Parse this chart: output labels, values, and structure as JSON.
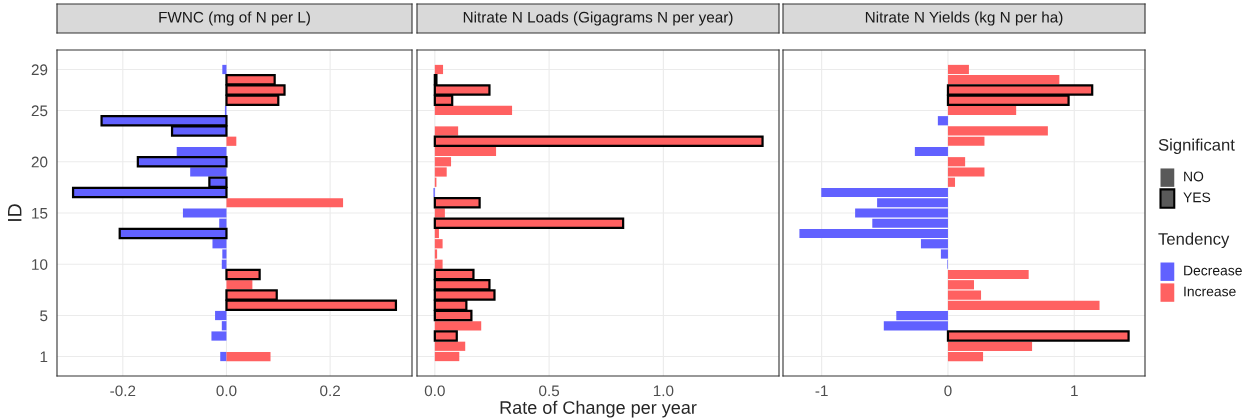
{
  "chart_data": [
    {
      "type": "bar",
      "orientation": "horizontal",
      "title": "FWNC (mg of N per L)",
      "ylabel": "ID",
      "x": [
        1,
        2,
        3,
        4,
        5,
        6,
        7,
        8,
        9,
        10,
        11,
        12,
        13,
        14,
        15,
        16,
        17,
        18,
        19,
        20,
        21,
        22,
        23,
        24,
        25,
        26,
        27,
        28,
        29
      ],
      "xlim": [
        -0.327,
        0.358
      ],
      "xticks": [
        {
          "value": -0.2,
          "label": "-0.2"
        },
        {
          "value": 0,
          "label": "0.0"
        },
        0.2
      ],
      "ylim": [
        -0.9,
        30.9
      ],
      "yticks": [
        1,
        5,
        10,
        15,
        20,
        25,
        29
      ],
      "grid": true,
      "tick_labels": true,
      "series": [
        {
          "color": "#6161ff",
          "values": [
            -0.012,
            null,
            -0.029,
            -0.009,
            -0.022,
            null,
            null,
            null,
            null,
            -0.009,
            -0.008,
            -0.027,
            null,
            -0.014,
            -0.084,
            null,
            null,
            null,
            -0.07,
            null,
            -0.096,
            null,
            null,
            null,
            -0.003,
            null,
            null,
            null,
            -0.008
          ]
        },
        {
          "color": "#ff6161",
          "values": [
            0.085,
            null,
            null,
            null,
            null,
            null,
            null,
            0.05,
            null,
            null,
            null,
            null,
            null,
            null,
            null,
            0.225,
            null,
            null,
            null,
            null,
            null,
            0.019,
            null,
            null,
            null,
            null,
            null,
            null,
            null
          ]
        },
        {
          "color": "#6161ff",
          "line_style": "solid",
          "values": [
            null,
            null,
            null,
            null,
            null,
            null,
            null,
            null,
            null,
            null,
            null,
            null,
            -0.206,
            null,
            null,
            null,
            -0.296,
            -0.033,
            null,
            -0.171,
            null,
            null,
            -0.105,
            -0.241,
            null,
            null,
            null,
            null,
            null
          ]
        },
        {
          "color": "#ff6161",
          "line_style": "solid",
          "values": [
            null,
            null,
            null,
            null,
            null,
            0.327,
            0.097,
            null,
            0.064,
            null,
            null,
            null,
            null,
            null,
            null,
            null,
            null,
            null,
            null,
            null,
            null,
            null,
            null,
            null,
            null,
            0.1,
            0.112,
            0.093,
            null
          ]
        }
      ]
    },
    {
      "type": "bar",
      "orientation": "horizontal",
      "title": "Nitrate N Loads (Gigagrams N per year)",
      "xlabel": "Rate of Change per year",
      "x": [
        1,
        2,
        3,
        4,
        5,
        6,
        7,
        8,
        9,
        10,
        11,
        12,
        13,
        14,
        15,
        16,
        17,
        18,
        19,
        20,
        21,
        22,
        23,
        24,
        25,
        26,
        27,
        28,
        29
      ],
      "xlim": [
        -0.078,
        1.506
      ],
      "xticks": [
        {
          "value": 0,
          "label": "0.0"
        },
        0.5,
        {
          "value": 1,
          "label": "1.0"
        }
      ],
      "ylim": [
        -0.9,
        30.9
      ],
      "yticks": [
        1,
        5,
        10,
        15,
        20,
        25,
        29
      ],
      "grid": true,
      "tick_labels": "x",
      "series": [
        {
          "color": "#6161ff",
          "values": [
            null,
            null,
            null,
            null,
            null,
            null,
            null,
            null,
            null,
            null,
            null,
            null,
            null,
            null,
            null,
            null,
            -0.006,
            null,
            null,
            null,
            null,
            null,
            null,
            null,
            null,
            null,
            null,
            null,
            null
          ]
        },
        {
          "color": "#ff6161",
          "values": [
            0.107,
            0.133,
            null,
            0.203,
            null,
            null,
            null,
            null,
            null,
            0.034,
            0.01,
            0.034,
            0.018,
            null,
            0.044,
            null,
            null,
            0.007,
            0.052,
            0.071,
            0.268,
            null,
            0.102,
            null,
            0.338,
            null,
            null,
            null,
            0.036
          ]
        },
        {
          "color": "#6161ff",
          "line_style": "solid",
          "values": [
            null,
            null,
            null,
            null,
            null,
            null,
            null,
            null,
            null,
            null,
            null,
            null,
            null,
            null,
            null,
            null,
            null,
            null,
            null,
            null,
            null,
            null,
            null,
            null,
            null,
            null,
            null,
            null,
            null
          ]
        },
        {
          "color": "#ff6161",
          "line_style": "solid",
          "values": [
            null,
            null,
            0.096,
            null,
            0.16,
            0.138,
            0.261,
            0.239,
            0.169,
            null,
            null,
            null,
            null,
            0.824,
            null,
            0.196,
            null,
            null,
            null,
            null,
            null,
            1.434,
            null,
            null,
            null,
            0.076,
            0.239,
            0.007,
            null
          ]
        }
      ]
    },
    {
      "type": "bar",
      "orientation": "horizontal",
      "title": "Nitrate N Yields (kg N per ha)",
      "x": [
        1,
        2,
        3,
        4,
        5,
        6,
        7,
        8,
        9,
        10,
        11,
        12,
        13,
        14,
        15,
        16,
        17,
        18,
        19,
        20,
        21,
        22,
        23,
        24,
        25,
        26,
        27,
        28,
        29
      ],
      "xlim": [
        -1.306,
        1.56
      ],
      "xticks": [
        {
          "value": -1,
          "label": "-1"
        },
        0,
        1
      ],
      "ylim": [
        -0.9,
        30.9
      ],
      "yticks": [
        1,
        5,
        10,
        15,
        20,
        25,
        29
      ],
      "grid": true,
      "tick_labels": "x",
      "legend": "right",
      "legend_title": [
        "Significant",
        "Tendency"
      ],
      "annotations": [
        "NO",
        "YES"
      ],
      "series": [
        {
          "name": "Decrease",
          "color": "#6161ff",
          "values": [
            null,
            null,
            null,
            -0.508,
            -0.409,
            null,
            null,
            null,
            null,
            -0.005,
            -0.056,
            -0.214,
            -1.176,
            -0.599,
            -0.735,
            -0.561,
            -1.003,
            null,
            null,
            null,
            -0.262,
            null,
            null,
            -0.08,
            null,
            null,
            null,
            null,
            null
          ]
        },
        {
          "name": "Increase",
          "color": "#ff6161",
          "values": [
            0.278,
            0.666,
            null,
            null,
            null,
            1.2,
            0.262,
            0.206,
            0.639,
            null,
            null,
            null,
            null,
            null,
            null,
            null,
            null,
            0.056,
            0.289,
            0.136,
            null,
            0.289,
            0.791,
            null,
            0.54,
            null,
            null,
            0.882,
            0.166
          ]
        },
        {
          "color": "#6161ff",
          "line_style": "solid",
          "values": [
            null,
            null,
            null,
            null,
            null,
            null,
            null,
            null,
            null,
            null,
            null,
            null,
            null,
            null,
            null,
            null,
            null,
            null,
            null,
            null,
            null,
            null,
            null,
            null,
            null,
            null,
            null,
            null,
            null
          ]
        },
        {
          "color": "#ff6161",
          "line_style": "solid",
          "values": [
            null,
            null,
            1.43,
            null,
            null,
            null,
            null,
            null,
            null,
            null,
            null,
            null,
            null,
            null,
            null,
            null,
            null,
            null,
            null,
            null,
            null,
            null,
            null,
            null,
            null,
            0.955,
            1.142,
            null,
            null
          ]
        }
      ]
    }
  ]
}
